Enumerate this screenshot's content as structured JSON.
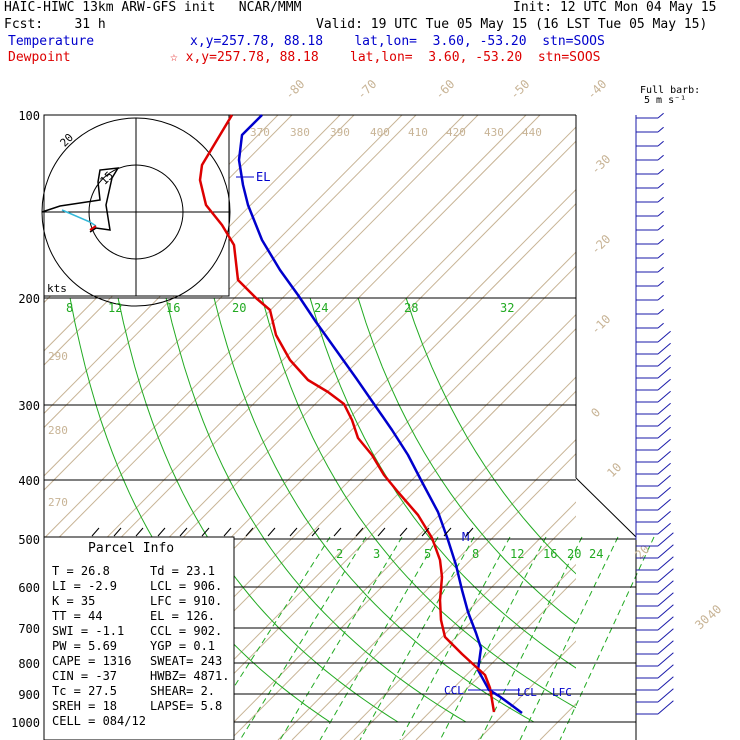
{
  "header": {
    "line1_left": "HAIC-HIWC 13km ARW-GFS init   NCAR/MMM",
    "line1_right": "Init: 12 UTC Mon 04 May 15",
    "line2_left": "Fcst:    31 h",
    "line2_right": "Valid: 19 UTC Tue 05 May 15 (16 LST Tue 05 May 15)",
    "temp_label": "Temperature",
    "temp_info": "x,y=257.78, 88.18    lat,lon=  3.60, -53.20  stn=SOOS",
    "dew_label": "Dewpoint",
    "dew_info": "☆ x,y=257.78, 88.18    lat,lon=  3.60, -53.20  stn=SOOS"
  },
  "colors": {
    "temperature": "#0000cc",
    "dewpoint": "#dd0000",
    "isotherm": "#c8b496",
    "adiabat": "#22aa22",
    "mixing_ratio": "#22aa22",
    "barb": "#1a1aaa"
  },
  "barb_legend": [
    "Full barb:",
    "5 m s⁻¹"
  ],
  "chart_data": {
    "type": "line",
    "title": "",
    "pressure_levels": [
      1000,
      900,
      800,
      700,
      600,
      500,
      400,
      300,
      200,
      100
    ],
    "pressure_labels": [
      "1000",
      "900",
      "800",
      "700",
      "600",
      "500",
      "400",
      "300",
      "200",
      "100"
    ],
    "isotherm_labels": [
      "-80",
      "-70",
      "-60",
      "-50",
      "-40",
      "-30",
      "-20",
      "-10",
      "0",
      "10",
      "20",
      "30",
      "40"
    ],
    "theta_labels": [
      "370",
      "380",
      "390",
      "400",
      "410",
      "420",
      "430",
      "440",
      "290",
      "280",
      "270"
    ],
    "theta_e_labels": [
      "8",
      "12",
      "16",
      "20",
      "24",
      "28",
      "32"
    ],
    "mixing_ratio_labels": [
      "2",
      "3",
      "5",
      "8",
      "12",
      "16",
      "20",
      "24"
    ],
    "series": [
      {
        "name": "Temperature",
        "color": "#0000cc",
        "x_pixel_ref": "temperature",
        "points": [
          [
            262,
            115
          ],
          [
            242,
            135
          ],
          [
            239,
            160
          ],
          [
            243,
            185
          ],
          [
            248,
            205
          ],
          [
            262,
            240
          ],
          [
            280,
            270
          ],
          [
            298,
            295
          ],
          [
            316,
            322
          ],
          [
            336,
            350
          ],
          [
            356,
            378
          ],
          [
            374,
            404
          ],
          [
            392,
            430
          ],
          [
            408,
            455
          ],
          [
            422,
            482
          ],
          [
            438,
            512
          ],
          [
            448,
            540
          ],
          [
            456,
            565
          ],
          [
            462,
            590
          ],
          [
            468,
            612
          ],
          [
            476,
            633
          ],
          [
            481,
            648
          ],
          [
            478,
            670
          ],
          [
            489,
            690
          ],
          [
            499,
            696
          ],
          [
            510,
            704
          ],
          [
            522,
            713
          ]
        ]
      },
      {
        "name": "Dewpoint",
        "color": "#dd0000",
        "x_pixel_ref": "dewpoint",
        "points": [
          [
            232,
            115
          ],
          [
            220,
            135
          ],
          [
            202,
            165
          ],
          [
            200,
            180
          ],
          [
            206,
            205
          ],
          [
            222,
            225
          ],
          [
            234,
            245
          ],
          [
            238,
            280
          ],
          [
            256,
            298
          ],
          [
            270,
            310
          ],
          [
            276,
            335
          ],
          [
            290,
            360
          ],
          [
            308,
            380
          ],
          [
            328,
            392
          ],
          [
            344,
            404
          ],
          [
            352,
            420
          ],
          [
            358,
            438
          ],
          [
            372,
            455
          ],
          [
            384,
            475
          ],
          [
            398,
            492
          ],
          [
            418,
            515
          ],
          [
            432,
            538
          ],
          [
            440,
            560
          ],
          [
            442,
            577
          ],
          [
            440,
            600
          ],
          [
            441,
            620
          ],
          [
            445,
            637
          ],
          [
            462,
            654
          ],
          [
            474,
            665
          ],
          [
            485,
            675
          ],
          [
            490,
            688
          ],
          [
            492,
            700
          ],
          [
            494,
            712
          ]
        ]
      }
    ],
    "annotations": [
      "EL",
      "M",
      "CCL",
      "LCL",
      "LFC",
      "kts",
      "15",
      "20"
    ],
    "wind_barbs": {
      "side": "right"
    }
  },
  "hodograph": {
    "center_label": "",
    "ring_labels": [
      "20",
      "15"
    ],
    "units": "kts"
  },
  "parcel_info": {
    "title": "Parcel Info",
    "rows": [
      [
        "T  =    26.8",
        "Td =  23.1"
      ],
      [
        "LI =    -2.9",
        "LCL =  906."
      ],
      [
        "K  =      35",
        "LFC =  910."
      ],
      [
        "TT =      44",
        "EL  =  126."
      ],
      [
        "SWI =   -1.1",
        "CCL =  902."
      ],
      [
        "PW =    5.69",
        "YGP =   0.1"
      ],
      [
        "CAPE =  1316",
        "SWEAT=  243"
      ],
      [
        "CIN =    -37",
        "HWBZ= 4871."
      ],
      [
        "Tc =    27.5",
        "SHEAR=   2."
      ],
      [
        "SREH =    18",
        "LAPSE=  5.8"
      ],
      [
        "CELL = 084/12",
        ""
      ]
    ]
  }
}
